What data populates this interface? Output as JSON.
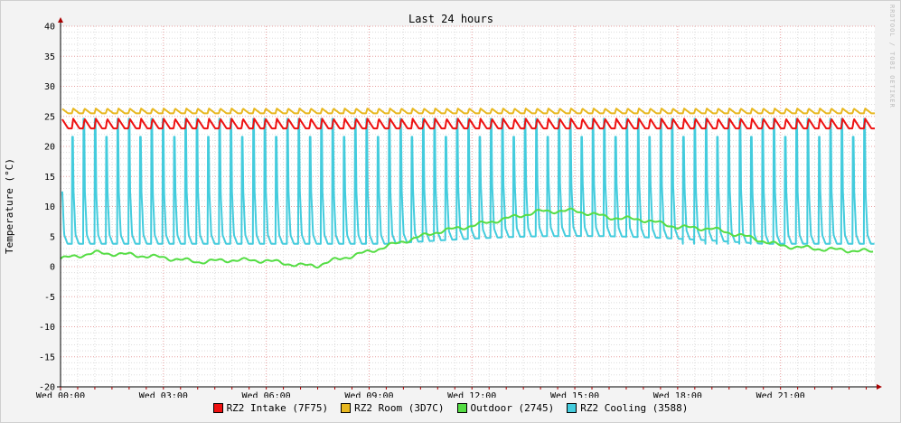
{
  "chart_data": {
    "type": "line",
    "title": "Last 24 hours",
    "ylabel": "Temperature (°C)",
    "xlabel": "",
    "watermark": "RRDTOOL / TOBI OETIKER",
    "ylim": [
      -20,
      40
    ],
    "yticks": [
      -20,
      -15,
      -10,
      -5,
      0,
      5,
      10,
      15,
      20,
      25,
      30,
      35,
      40
    ],
    "xlim_hours": [
      0,
      23.75
    ],
    "xticks": [
      {
        "hour": 0,
        "label": "Wed 00:00"
      },
      {
        "hour": 3,
        "label": "Wed 03:00"
      },
      {
        "hour": 6,
        "label": "Wed 06:00"
      },
      {
        "hour": 9,
        "label": "Wed 09:00"
      },
      {
        "hour": 12,
        "label": "Wed 12:00"
      },
      {
        "hour": 15,
        "label": "Wed 15:00"
      },
      {
        "hour": 18,
        "label": "Wed 18:00"
      },
      {
        "hour": 21,
        "label": "Wed 21:00"
      }
    ],
    "grid": true,
    "legend_position": "bottom",
    "series": [
      {
        "name": "RZ2 Intake (7F75)",
        "color": "#ee1111",
        "pattern": "sawtooth",
        "base": 23.0,
        "peak": 24.6,
        "period_hours": 0.33
      },
      {
        "name": "RZ2 Room (3D7C)",
        "color": "#e8b820",
        "pattern": "sawtooth",
        "base": 25.5,
        "peak": 26.3,
        "period_hours": 0.33
      },
      {
        "name": "Outdoor (2745)",
        "color": "#55dd44",
        "pattern": "smooth",
        "x": [
          0,
          1,
          2,
          3,
          4,
          5,
          6,
          7,
          7.5,
          8,
          9,
          10,
          11,
          12,
          13,
          14,
          15,
          16,
          17,
          18,
          19,
          20,
          21,
          22,
          23,
          23.75
        ],
        "y": [
          1.3,
          2.3,
          2.0,
          1.5,
          0.8,
          1.1,
          1.0,
          0.2,
          0.2,
          1.1,
          2.5,
          4.2,
          5.8,
          6.8,
          8.0,
          9.2,
          9.3,
          8.2,
          7.8,
          6.6,
          6.3,
          5.0,
          3.5,
          3.0,
          2.7,
          2.5
        ]
      },
      {
        "name": "RZ2 Cooling (3588)",
        "color": "#44ccdd",
        "pattern": "spikes",
        "low": 3.8,
        "high": 24.6,
        "period_hours": 0.33
      }
    ]
  }
}
